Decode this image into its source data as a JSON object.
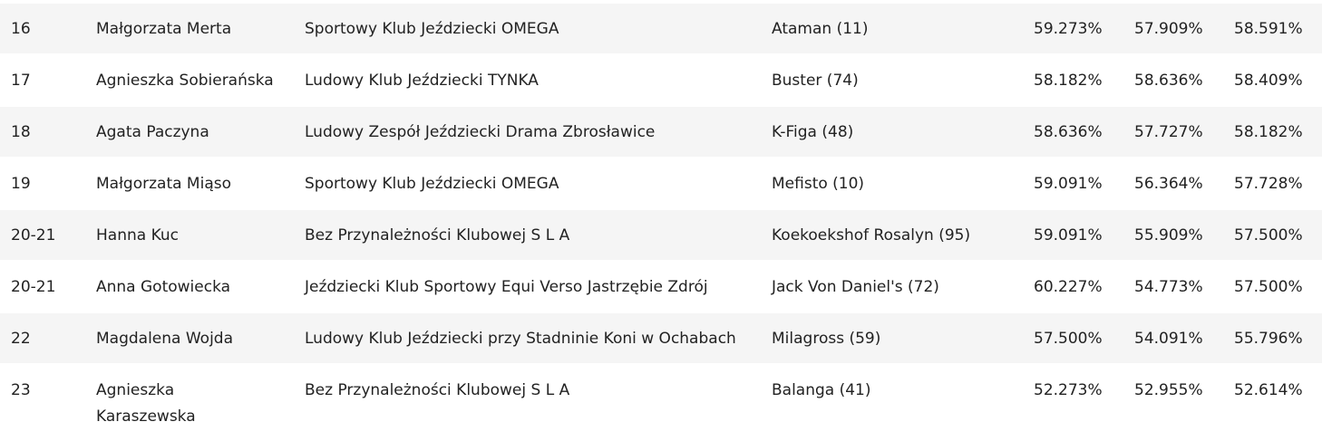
{
  "table": {
    "rows": [
      [
        "16",
        "Małgorzata Merta",
        "Sportowy Klub Jeździecki OMEGA",
        "Ataman (11)",
        "59.273%",
        "57.909%",
        "58.591%"
      ],
      [
        "17",
        "Agnieszka Sobierańska",
        "Ludowy Klub Jeździecki TYNKA",
        "Buster (74)",
        "58.182%",
        "58.636%",
        "58.409%"
      ],
      [
        "18",
        "Agata Paczyna",
        "Ludowy Zespół Jeździecki Drama Zbrosławice",
        "K-Figa (48)",
        "58.636%",
        "57.727%",
        "58.182%"
      ],
      [
        "19",
        "Małgorzata Miąso",
        "Sportowy Klub Jeździecki OMEGA",
        "Mefisto (10)",
        "59.091%",
        "56.364%",
        "57.728%"
      ],
      [
        "20-21",
        "Hanna Kuc",
        "Bez Przynależności Klubowej S L A",
        "Koekoekshof Rosalyn (95)",
        "59.091%",
        "55.909%",
        "57.500%"
      ],
      [
        "20-21",
        "Anna Gotowiecka",
        "Jeździecki Klub Sportowy Equi Verso Jastrzębie Zdrój",
        "Jack Von Daniel's (72)",
        "60.227%",
        "54.773%",
        "57.500%"
      ],
      [
        "22",
        "Magdalena Wojda",
        "Ludowy Klub Jeździecki przy Stadninie Koni w Ochabach",
        "Milagross (59)",
        "57.500%",
        "54.091%",
        "55.796%"
      ],
      [
        "23",
        "Agnieszka Karaszewska",
        "Bez Przynależności Klubowej S L A",
        "Balanga (41)",
        "52.273%",
        "52.955%",
        "52.614%"
      ]
    ]
  }
}
